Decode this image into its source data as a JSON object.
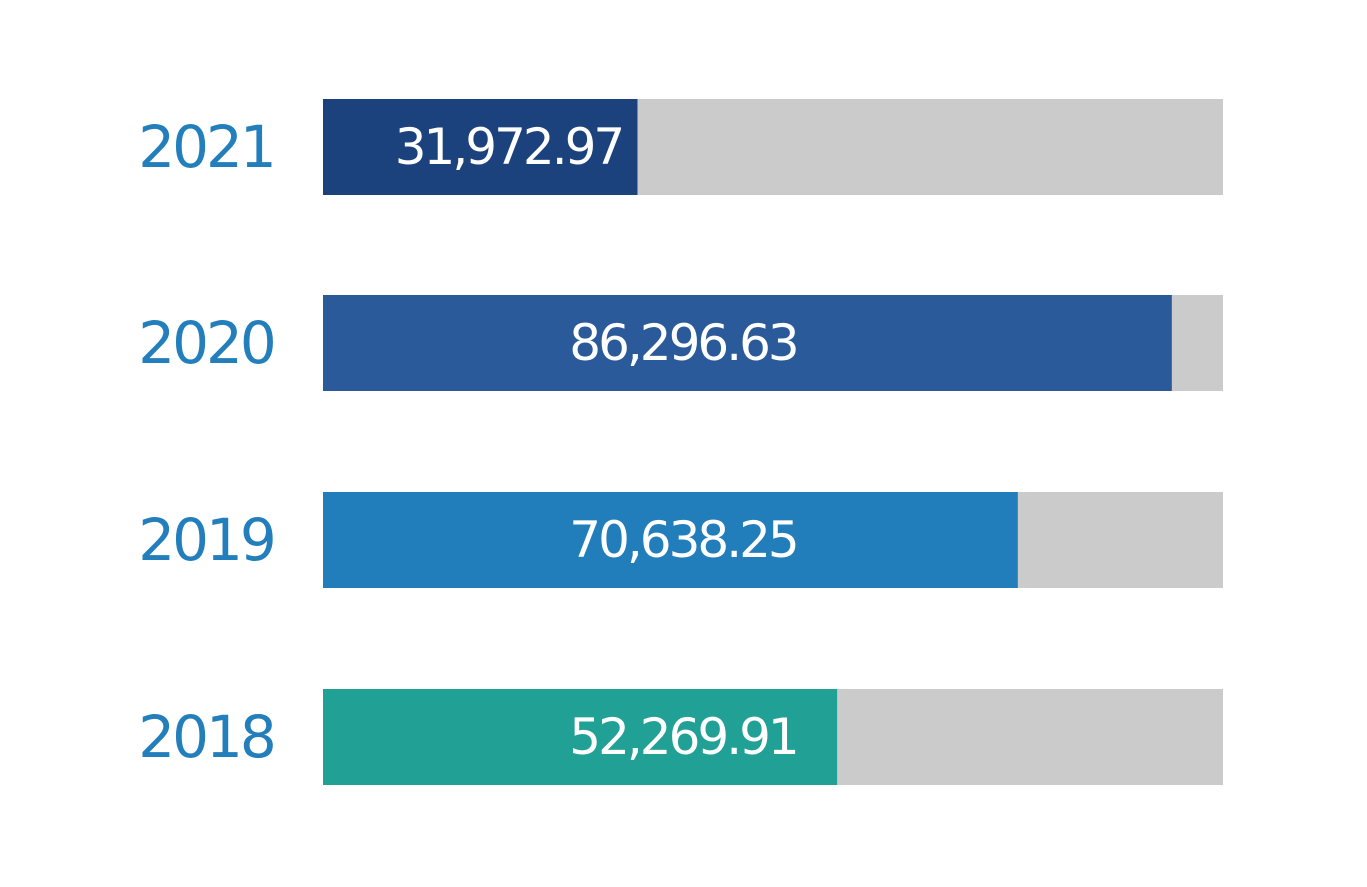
{
  "chart_data": {
    "type": "bar",
    "orientation": "horizontal",
    "categories": [
      "2021",
      "2020",
      "2019",
      "2018"
    ],
    "values": [
      31972.97,
      86296.63,
      70638.25,
      52269.91
    ],
    "value_labels": [
      "31,972.97",
      "86,296.63",
      "70,638.25",
      "52,269.91"
    ],
    "colors": [
      "#1c427e",
      "#2a5a99",
      "#227dbb",
      "#21a196"
    ],
    "track_color": "#cbcbcb",
    "category_label_color": "#237ebc",
    "value_label_color": "#ffffff",
    "xlim": [
      0,
      91500
    ],
    "title": "",
    "xlabel": "",
    "ylabel": ""
  }
}
